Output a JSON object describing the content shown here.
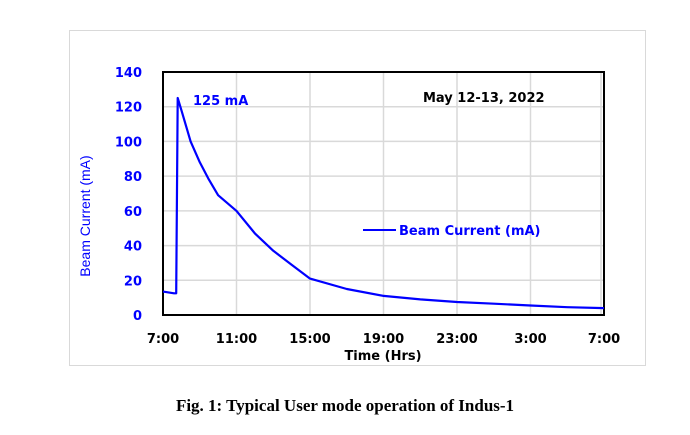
{
  "figure": {
    "caption": "Fig. 1: Typical User mode operation of Indus-1",
    "date_annotation": "May 12-13, 2022",
    "peak_annotation": "125 mA",
    "legend_label": "Beam Current (mA)",
    "xlabel": "Time (Hrs)",
    "ylabel": "Beam Current (mA)",
    "x_ticks": [
      "7:00",
      "11:00",
      "15:00",
      "19:00",
      "23:00",
      "3:00",
      "7:00"
    ],
    "y_ticks": [
      "0",
      "20",
      "40",
      "60",
      "80",
      "100",
      "120",
      "140"
    ],
    "series_color": "#0000ff",
    "tick_color_y": "#0000ff",
    "tick_color_x": "#000000"
  },
  "chart_data": {
    "type": "line",
    "title": "",
    "annotations": [
      "May 12-13, 2022",
      "125 mA"
    ],
    "xlabel": "Time (Hrs)",
    "ylabel": "Beam Current (mA)",
    "x_unit": "hours since 7:00 (May 12)",
    "x_tick_labels": [
      "7:00",
      "11:00",
      "15:00",
      "19:00",
      "23:00",
      "3:00",
      "7:00"
    ],
    "xlim": [
      0,
      24
    ],
    "ylim": [
      0,
      140
    ],
    "y_ticks": [
      0,
      20,
      40,
      60,
      80,
      100,
      120,
      140
    ],
    "grid": true,
    "legend_position": "center-right inside plot",
    "series": [
      {
        "name": "Beam Current (mA)",
        "x": [
          0,
          0.6,
          0.72,
          0.8,
          1.0,
          1.5,
          2.0,
          2.5,
          3.0,
          4.0,
          5.0,
          6.0,
          7.0,
          8.0,
          10.0,
          12.0,
          14.0,
          16.0,
          18.0,
          20.0,
          22.0,
          24.0
        ],
        "values": [
          13.5,
          12.5,
          12.5,
          125,
          118,
          100,
          88,
          78,
          69,
          60,
          47,
          37,
          29,
          21,
          15,
          11,
          9,
          7.5,
          6.5,
          5.5,
          4.5,
          4
        ]
      }
    ]
  }
}
